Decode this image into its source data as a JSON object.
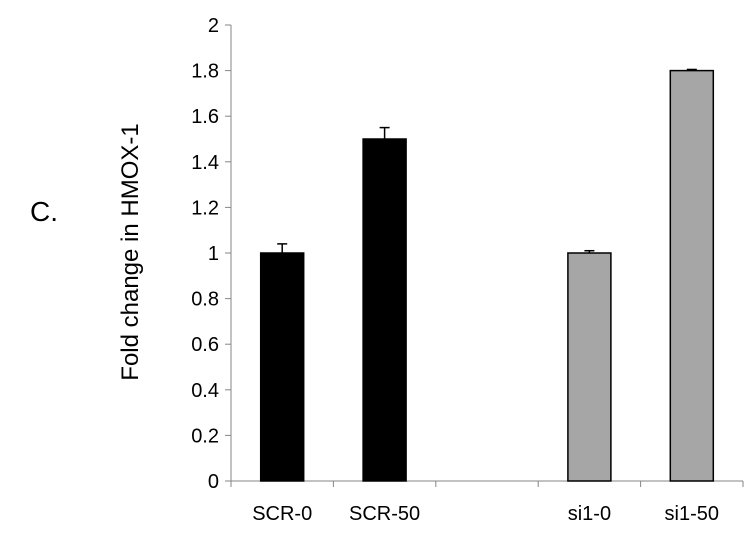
{
  "panel_label": "C.",
  "chart_data": {
    "type": "bar",
    "title": "",
    "xlabel": "",
    "ylabel": "Fold change in HMOX-1",
    "categories": [
      "SCR-0",
      "SCR-50",
      "",
      "si1-0",
      "si1-50"
    ],
    "values": [
      1.0,
      1.5,
      null,
      1.0,
      1.8
    ],
    "errors": [
      0.04,
      0.05,
      null,
      0.01,
      0.005
    ],
    "bar_colors": [
      "#000000",
      "#000000",
      null,
      "#a6a6a6",
      "#a6a6a6"
    ],
    "ylim": [
      0,
      2
    ],
    "yticks": [
      "0",
      "0.2",
      "0.4",
      "0.6",
      "0.8",
      "1",
      "1.2",
      "1.4",
      "1.6",
      "1.8",
      "2"
    ],
    "grid": false,
    "legend": "none"
  }
}
